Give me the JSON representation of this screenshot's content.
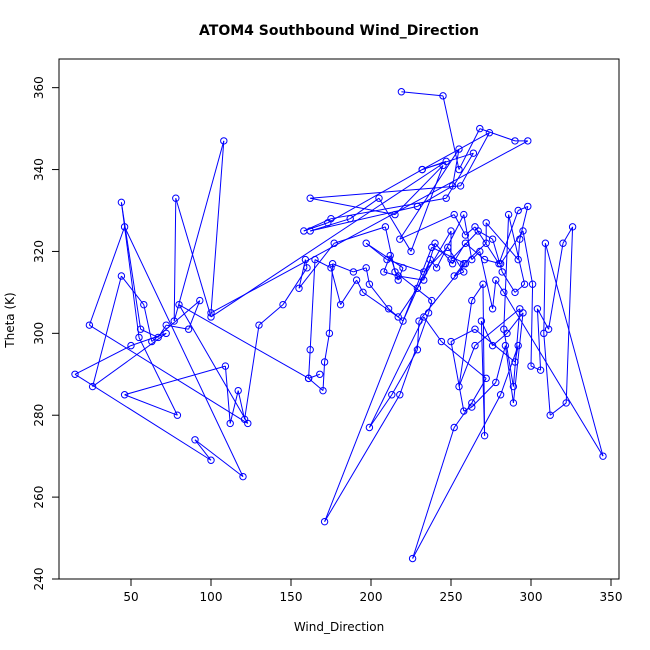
{
  "chart_data": {
    "type": "line",
    "title": "ATOM4 Southbound Wind_Direction",
    "xlabel": "Wind_Direction",
    "ylabel": "Theta (K)",
    "xlim": [
      5,
      355
    ],
    "ylim": [
      240,
      367
    ],
    "xticks": [
      50,
      100,
      150,
      200,
      250,
      300,
      350
    ],
    "yticks": [
      240,
      260,
      280,
      300,
      320,
      340,
      360
    ],
    "grid": false,
    "marker": "open-circle",
    "series": [
      {
        "color": "#0000ff",
        "points": [
          [
            219,
            359
          ],
          [
            245,
            358
          ],
          [
            255,
            340
          ],
          [
            268,
            350
          ],
          [
            290,
            347
          ],
          [
            298,
            347
          ],
          [
            100,
            305
          ],
          [
            108,
            347
          ],
          [
            77,
            303
          ],
          [
            78,
            333
          ],
          [
            100,
            304
          ],
          [
            247,
            342
          ],
          [
            232,
            340
          ],
          [
            264,
            344
          ],
          [
            247,
            333
          ],
          [
            175,
            328
          ],
          [
            158,
            325
          ],
          [
            173,
            327
          ],
          [
            232,
            340
          ],
          [
            274,
            349
          ],
          [
            256,
            336
          ],
          [
            162,
            333
          ],
          [
            215,
            329
          ],
          [
            245,
            341
          ],
          [
            225,
            320
          ],
          [
            205,
            333
          ],
          [
            187,
            328
          ],
          [
            162,
            325
          ],
          [
            229,
            331
          ],
          [
            251,
            336
          ],
          [
            255,
            345
          ],
          [
            218,
            323
          ],
          [
            252,
            329
          ],
          [
            259,
            324
          ],
          [
            265,
            326
          ],
          [
            280,
            317
          ],
          [
            292,
            330
          ],
          [
            298,
            331
          ],
          [
            293,
            323
          ],
          [
            292,
            318
          ],
          [
            272,
            327
          ],
          [
            272,
            322
          ],
          [
            258,
            317
          ],
          [
            252,
            314
          ],
          [
            258,
            315
          ],
          [
            248,
            321
          ],
          [
            233,
            315
          ],
          [
            210,
            318
          ],
          [
            197,
            322
          ],
          [
            220,
            316
          ],
          [
            217,
            313
          ],
          [
            212,
            319
          ],
          [
            208,
            315
          ],
          [
            217,
            314
          ],
          [
            233,
            313
          ],
          [
            240,
            322
          ],
          [
            251,
            317
          ],
          [
            259,
            322
          ],
          [
            271,
            318
          ],
          [
            281,
            317
          ],
          [
            295,
            325
          ],
          [
            301,
            312
          ],
          [
            300,
            292
          ],
          [
            306,
            291
          ],
          [
            304,
            306
          ],
          [
            311,
            301
          ],
          [
            320,
            322
          ],
          [
            326,
            326
          ],
          [
            322,
            283
          ],
          [
            312,
            280
          ],
          [
            308,
            300
          ],
          [
            309,
            322
          ],
          [
            345,
            270
          ],
          [
            283,
            310
          ],
          [
            278,
            313
          ],
          [
            276,
            306
          ],
          [
            268,
            320
          ],
          [
            263,
            318
          ],
          [
            258,
            329
          ],
          [
            241,
            316
          ],
          [
            237,
            318
          ],
          [
            220,
            303
          ],
          [
            211,
            306
          ],
          [
            199,
            312
          ],
          [
            197,
            316
          ],
          [
            189,
            315
          ],
          [
            176,
            317
          ],
          [
            174,
            300
          ],
          [
            171,
            293
          ],
          [
            170,
            286
          ],
          [
            161,
            289
          ],
          [
            162,
            296
          ],
          [
            165,
            318
          ],
          [
            175,
            316
          ],
          [
            181,
            307
          ],
          [
            191,
            313
          ],
          [
            195,
            310
          ],
          [
            217,
            304
          ],
          [
            229,
            311
          ],
          [
            250,
            325
          ],
          [
            250,
            318
          ],
          [
            267,
            325
          ],
          [
            276,
            323
          ],
          [
            282,
            315
          ],
          [
            290,
            310
          ],
          [
            296,
            312
          ],
          [
            286,
            329
          ],
          [
            283,
            301
          ],
          [
            289,
            287
          ],
          [
            293,
            306
          ],
          [
            265,
            297
          ],
          [
            255,
            287
          ],
          [
            263,
            308
          ],
          [
            270,
            312
          ],
          [
            271,
            275
          ],
          [
            269,
            303
          ],
          [
            276,
            297
          ],
          [
            285,
            300
          ],
          [
            295,
            305
          ],
          [
            289,
            283
          ],
          [
            284,
            297
          ],
          [
            278,
            288
          ],
          [
            263,
            282
          ],
          [
            258,
            281
          ],
          [
            250,
            298
          ],
          [
            265,
            301
          ],
          [
            290,
            293
          ],
          [
            292,
            297
          ],
          [
            281,
            285
          ],
          [
            226,
            245
          ],
          [
            252,
            277
          ],
          [
            263,
            283
          ],
          [
            272,
            289
          ],
          [
            244,
            298
          ],
          [
            233,
            304
          ],
          [
            199,
            277
          ],
          [
            213,
            285
          ],
          [
            229,
            296
          ],
          [
            230,
            303
          ],
          [
            259,
            317
          ],
          [
            238,
            321
          ],
          [
            171,
            254
          ],
          [
            218,
            285
          ],
          [
            236,
            305
          ],
          [
            238,
            308
          ],
          [
            215,
            315
          ],
          [
            209,
            326
          ],
          [
            177,
            322
          ],
          [
            155,
            311
          ],
          [
            159,
            318
          ],
          [
            160,
            316
          ],
          [
            145,
            307
          ],
          [
            130,
            302
          ],
          [
            121,
            279
          ],
          [
            117,
            286
          ],
          [
            112,
            278
          ],
          [
            109,
            292
          ],
          [
            46,
            285
          ],
          [
            79,
            280
          ],
          [
            55,
            299
          ],
          [
            44,
            332
          ],
          [
            56,
            301
          ],
          [
            67,
            299
          ],
          [
            72,
            302
          ],
          [
            86,
            301
          ],
          [
            93,
            308
          ],
          [
            63,
            298
          ],
          [
            58,
            307
          ],
          [
            44,
            314
          ],
          [
            26,
            287
          ],
          [
            72,
            300
          ],
          [
            50,
            297
          ],
          [
            15,
            290
          ],
          [
            100,
            269
          ],
          [
            90,
            274
          ],
          [
            120,
            265
          ],
          [
            46,
            326
          ],
          [
            24,
            302
          ],
          [
            123,
            278
          ],
          [
            80,
            307
          ],
          [
            161,
            289
          ],
          [
            168,
            290
          ]
        ]
      }
    ]
  }
}
